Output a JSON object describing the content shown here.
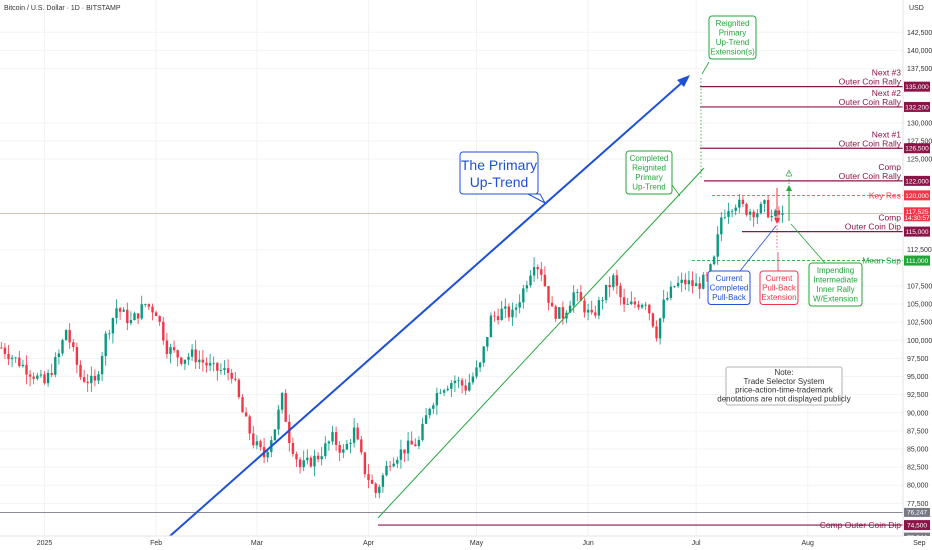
{
  "header": {
    "title": "Bitcoin / U.S. Dollar · 1D · BITSTAMP",
    "currency": "USD"
  },
  "colors": {
    "up": "#089981",
    "down": "#f23645",
    "trend": "#1e50d8",
    "channel": "#22a63a",
    "level": "#8b1548",
    "note_border": "#9e9e9e"
  },
  "chart_data": {
    "type": "candlestick",
    "title": "Bitcoin / U.S. Dollar · 1D · BITSTAMP",
    "ylim": [
      72000,
      146000
    ],
    "y_ticks": [
      {
        "v": 142500,
        "t": "142,500"
      },
      {
        "v": 140000,
        "t": "140,000"
      },
      {
        "v": 137500,
        "t": "137,500"
      },
      {
        "v": 130000,
        "t": "130,000"
      },
      {
        "v": 127500,
        "t": "127,500"
      },
      {
        "v": 125000,
        "t": "125,000"
      },
      {
        "v": 112500,
        "t": "112,500"
      },
      {
        "v": 107500,
        "t": "107,500"
      },
      {
        "v": 105000,
        "t": "105,000"
      },
      {
        "v": 102500,
        "t": "102,500"
      },
      {
        "v": 100000,
        "t": "100,000"
      },
      {
        "v": 97500,
        "t": "97,500"
      },
      {
        "v": 95000,
        "t": "95,000"
      },
      {
        "v": 92500,
        "t": "92,500"
      },
      {
        "v": 90000,
        "t": "90,000"
      },
      {
        "v": 87500,
        "t": "87,500"
      },
      {
        "v": 85000,
        "t": "85,000"
      },
      {
        "v": 82500,
        "t": "82,500"
      },
      {
        "v": 80000,
        "t": "80,000"
      },
      {
        "v": 77500,
        "t": "77,500"
      }
    ],
    "x_ticks": [
      {
        "day": 0,
        "t": "2025"
      },
      {
        "day": 31,
        "t": "Feb"
      },
      {
        "day": 59,
        "t": "Mar"
      },
      {
        "day": 90,
        "t": "Apr"
      },
      {
        "day": 120,
        "t": "May"
      },
      {
        "day": 151,
        "t": "Jun"
      },
      {
        "day": 181,
        "t": "Jul"
      },
      {
        "day": 212,
        "t": "Aug"
      },
      {
        "day": 243,
        "t": "Sep"
      }
    ],
    "anchors": [
      [
        -12,
        99000
      ],
      [
        -6,
        96500
      ],
      [
        0,
        94000
      ],
      [
        4,
        98000
      ],
      [
        6,
        101500
      ],
      [
        10,
        95000
      ],
      [
        14,
        94000
      ],
      [
        17,
        100500
      ],
      [
        20,
        104500
      ],
      [
        24,
        102500
      ],
      [
        28,
        105000
      ],
      [
        31,
        104000
      ],
      [
        34,
        99000
      ],
      [
        38,
        97500
      ],
      [
        41,
        98000
      ],
      [
        44,
        97000
      ],
      [
        47,
        96000
      ],
      [
        52,
        95500
      ],
      [
        55,
        90000
      ],
      [
        58,
        86000
      ],
      [
        61,
        84000
      ],
      [
        64,
        88000
      ],
      [
        66,
        92000
      ],
      [
        68,
        86500
      ],
      [
        71,
        82500
      ],
      [
        73,
        83000
      ],
      [
        76,
        84000
      ],
      [
        80,
        86500
      ],
      [
        83,
        84500
      ],
      [
        86,
        87500
      ],
      [
        89,
        82000
      ],
      [
        92,
        79000
      ],
      [
        96,
        83500
      ],
      [
        100,
        85000
      ],
      [
        104,
        86000
      ],
      [
        107,
        91000
      ],
      [
        110,
        93500
      ],
      [
        114,
        94500
      ],
      [
        117,
        93500
      ],
      [
        121,
        96500
      ],
      [
        124,
        103000
      ],
      [
        127,
        104000
      ],
      [
        130,
        103500
      ],
      [
        133,
        107000
      ],
      [
        136,
        111000
      ],
      [
        138,
        109500
      ],
      [
        141,
        104000
      ],
      [
        144,
        103500
      ],
      [
        147,
        106500
      ],
      [
        150,
        104500
      ],
      [
        152,
        103000
      ],
      [
        155,
        106000
      ],
      [
        158,
        108500
      ],
      [
        161,
        104500
      ],
      [
        164,
        105000
      ],
      [
        167,
        105500
      ],
      [
        170,
        101000
      ],
      [
        172,
        105000
      ],
      [
        175,
        107500
      ],
      [
        178,
        108000
      ],
      [
        181,
        107500
      ],
      [
        184,
        108500
      ],
      [
        186,
        111000
      ],
      [
        188,
        117000
      ],
      [
        190,
        118500
      ],
      [
        192,
        119000
      ],
      [
        195,
        118000
      ],
      [
        198,
        117800
      ],
      [
        200,
        118500
      ],
      [
        202,
        117000
      ],
      [
        204,
        117300
      ],
      [
        205,
        117525
      ]
    ],
    "levels": [
      {
        "name": "Next #3 Outer Coin Rally",
        "value": 135000,
        "tag": "135,000",
        "line1": "Next #3",
        "line2": "Outer Coin Rally"
      },
      {
        "name": "Next #2 Outer Coin Rally",
        "value": 132200,
        "tag": "132,200",
        "line1": "Next #2",
        "line2": "Outer Coin Rally"
      },
      {
        "name": "Next #1 Outer Coin Rally",
        "value": 126500,
        "tag": "126,500",
        "line1": "Next #1",
        "line2": "Outer Coin Rally"
      },
      {
        "name": "Comp Outer Coin Rally",
        "value": 122000,
        "tag": "122,000",
        "line1": "Comp",
        "line2": "Outer Coin Rally"
      },
      {
        "name": "Comp Outer Coin Dip",
        "value": 115000,
        "tag": "115,000",
        "line1": "Comp",
        "line2": "Outer Coin Dip"
      },
      {
        "name": "Comp Outer Coin Dip (lower)",
        "value": 74500,
        "tag": "74,500",
        "line1": "Comp Outer Coin Dip",
        "line2": ""
      }
    ],
    "key_res": {
      "label": "Key Res",
      "value": 120000,
      "tag": "120,000"
    },
    "mean_sup": {
      "label": "Mean Sup",
      "value": 111000,
      "tag": "111,000"
    },
    "last_price": {
      "value": 117525,
      "tag": "117,525",
      "countdown": "14:30:57"
    },
    "bottom_tags": [
      {
        "value": 76247,
        "tag": "76,247"
      },
      {
        "value": 72844,
        "tag": "72,844"
      }
    ]
  },
  "annotations": {
    "primary_trend": [
      "The Primary",
      "Up-Trend"
    ],
    "reignited": [
      "Reignited",
      "Primary",
      "Up-Trend",
      "Extension(s)"
    ],
    "completed": [
      "Completed",
      "Reignited",
      "Primary",
      "Up-Trend"
    ],
    "current_completed": [
      "Current",
      "Completed",
      "Pull-Back"
    ],
    "current_extension": [
      "Current",
      "Pull-Back",
      "Extension"
    ],
    "impending": [
      "Impending",
      "Intermediate",
      "Inner Rally",
      "W/Extension"
    ],
    "note": [
      "Note:",
      "Trade Selector System",
      "price-action-time-trademark",
      "denotations are not displayed publicly"
    ]
  }
}
